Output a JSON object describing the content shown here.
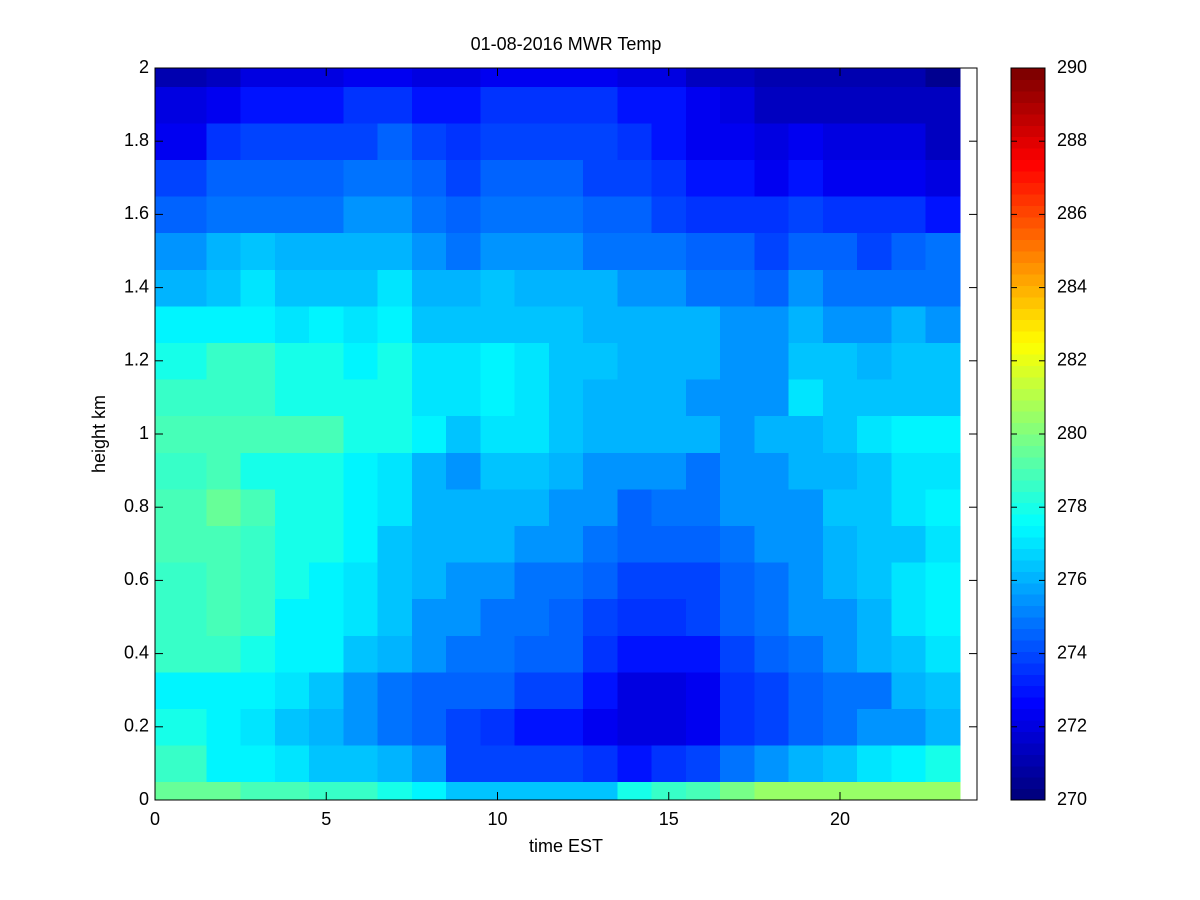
{
  "chart_data": {
    "type": "heatmap",
    "title": "01-08-2016 MWR Temp",
    "xlabel": "time EST",
    "ylabel": "height km",
    "xlim": [
      0,
      24
    ],
    "xticks": [
      0,
      5,
      10,
      15,
      20
    ],
    "ylim": [
      0,
      2
    ],
    "yticks": [
      0,
      0.2,
      0.4,
      0.6,
      0.8,
      1,
      1.2,
      1.4,
      1.6,
      1.8,
      2
    ],
    "colormap": "jet",
    "clim": [
      270,
      290
    ],
    "colorbar_ticks": [
      270,
      272,
      274,
      276,
      278,
      280,
      282,
      284,
      286,
      288,
      290
    ],
    "x_edges": [
      0,
      1.5,
      2.5,
      3.5,
      4.5,
      5.5,
      6.5,
      7.5,
      8.5,
      9.5,
      10.5,
      11.5,
      12.5,
      13.5,
      14.5,
      15.5,
      16.5,
      17.5,
      18.5,
      19.5,
      20.5,
      21.5,
      22.5,
      23.5
    ],
    "y_edges": [
      0,
      0.05,
      0.15,
      0.25,
      0.35,
      0.45,
      0.55,
      0.65,
      0.75,
      0.85,
      0.95,
      1.05,
      1.15,
      1.25,
      1.35,
      1.45,
      1.55,
      1.65,
      1.75,
      1.85,
      1.95,
      2
    ],
    "values": [
      [
        279.5,
        279.5,
        279,
        279,
        278.5,
        278.5,
        278,
        277.5,
        276.5,
        276.5,
        276.5,
        276.5,
        276.5,
        278,
        278.5,
        279,
        280,
        280.5,
        280.5,
        280.5,
        280.5,
        280.5,
        280.5
      ],
      [
        278.5,
        277.5,
        277.5,
        277,
        276.5,
        276.5,
        276,
        275.5,
        274,
        274,
        274,
        274,
        273.5,
        273,
        273.5,
        274,
        275,
        275.5,
        276,
        276.5,
        277,
        277.5,
        278
      ],
      [
        278,
        277.5,
        277,
        276.5,
        276,
        275.5,
        275,
        274.5,
        274,
        273.5,
        273,
        273,
        272.5,
        272,
        272,
        272.5,
        273.5,
        274,
        274.5,
        275,
        275.5,
        275.5,
        276
      ],
      [
        277.5,
        277.5,
        277.5,
        277,
        276.5,
        275.5,
        275,
        274.5,
        274.5,
        274.5,
        274,
        274,
        273,
        272,
        272,
        272.5,
        273.5,
        274,
        274.5,
        275,
        275,
        276,
        276.5
      ],
      [
        278.5,
        278.5,
        278,
        277.5,
        277.5,
        276.5,
        276,
        275.5,
        275,
        275,
        274.5,
        274.5,
        273.5,
        273,
        273,
        273,
        274,
        274.5,
        275,
        275.5,
        276,
        276.5,
        277
      ],
      [
        278.5,
        279,
        278.5,
        277.5,
        277.5,
        277,
        276.5,
        275.5,
        275.5,
        275,
        275,
        274.5,
        274,
        273.5,
        273.5,
        274,
        274.5,
        275,
        275.5,
        275.5,
        276,
        277,
        277.5
      ],
      [
        278.5,
        279,
        278.5,
        278,
        277.5,
        277,
        276.5,
        276,
        275.5,
        275.5,
        275,
        275,
        274.5,
        274,
        274,
        274,
        274.5,
        275,
        275.5,
        276,
        276.5,
        277,
        277.5
      ],
      [
        279,
        279,
        278.5,
        278,
        278,
        277.5,
        276.5,
        276,
        276,
        276,
        275.5,
        275.5,
        275,
        274.5,
        274.5,
        274.5,
        275,
        275.5,
        275.5,
        276,
        276.5,
        276.5,
        277
      ],
      [
        279,
        279.5,
        279,
        278,
        278,
        277.5,
        277,
        276,
        276,
        276,
        276,
        275.5,
        275.5,
        274.5,
        275,
        275,
        275.5,
        275.5,
        275.5,
        276.5,
        276.5,
        277,
        277.5
      ],
      [
        278.5,
        279,
        278,
        278,
        278,
        277.5,
        277,
        276,
        275.5,
        276.5,
        276.5,
        276,
        275.5,
        275.5,
        275.5,
        275,
        275.5,
        275.5,
        276,
        276,
        276.5,
        277,
        277
      ],
      [
        279,
        279,
        279,
        279,
        279,
        278,
        278,
        277.5,
        276.5,
        277,
        277,
        276.5,
        276,
        276,
        276,
        276,
        275.5,
        276,
        276,
        276.5,
        277,
        277.5,
        277.5
      ],
      [
        278.5,
        278.5,
        278.5,
        278,
        278,
        278,
        278,
        277,
        277,
        277.5,
        277,
        276.5,
        276,
        276,
        276,
        275.5,
        275.5,
        275.5,
        277,
        276.5,
        276.5,
        276.5,
        276.5
      ],
      [
        278,
        278.5,
        278.5,
        278,
        278,
        277.5,
        278,
        277,
        277,
        277.5,
        277,
        276.5,
        276.5,
        276,
        276,
        276,
        275.5,
        275.5,
        276.5,
        276.5,
        276,
        276.5,
        276.5
      ],
      [
        277.5,
        277.5,
        277.5,
        277,
        277.5,
        277,
        277.5,
        276.5,
        276.5,
        276.5,
        276.5,
        276.5,
        276,
        276,
        276,
        276,
        275.5,
        275.5,
        276,
        275.5,
        275.5,
        276,
        275.5
      ],
      [
        276,
        276.5,
        277,
        276.5,
        276.5,
        276.5,
        277,
        276,
        276,
        276.5,
        276,
        276,
        276,
        275.5,
        275.5,
        275,
        275,
        274.5,
        275.5,
        275,
        275,
        275,
        275
      ],
      [
        275.5,
        276,
        276.5,
        276,
        276,
        276,
        276,
        275.5,
        275,
        275.5,
        275.5,
        275.5,
        275,
        275,
        275,
        274.5,
        274.5,
        274,
        274.5,
        274.5,
        274,
        274.5,
        275
      ],
      [
        274.5,
        275,
        275,
        275,
        275,
        275.5,
        275.5,
        275,
        274.5,
        275,
        275,
        275,
        274.5,
        274.5,
        274,
        273.5,
        273.5,
        273.5,
        274,
        273.5,
        273.5,
        273.5,
        273
      ],
      [
        274,
        274.5,
        274.5,
        274.5,
        274.5,
        275,
        275,
        274.5,
        274,
        274.5,
        274.5,
        274.5,
        274,
        274,
        273.5,
        273,
        273,
        272.5,
        273,
        272.5,
        272.5,
        272.5,
        272
      ],
      [
        272.5,
        273.5,
        274,
        274,
        274,
        274,
        274.5,
        274,
        273.5,
        274,
        274,
        274,
        274,
        273.5,
        273,
        272.5,
        272.5,
        272,
        272.5,
        272,
        272,
        272,
        271.5
      ],
      [
        272,
        272.5,
        273,
        273,
        273,
        273.5,
        273.5,
        273,
        273,
        273.5,
        273.5,
        273.5,
        273.5,
        273,
        273,
        272.5,
        272,
        271.5,
        271.5,
        271.5,
        271.5,
        271.5,
        271.5
      ],
      [
        271,
        271.5,
        272,
        272,
        272,
        272.5,
        272.5,
        272,
        272,
        272.5,
        272.5,
        272.5,
        272.5,
        272,
        272,
        271.5,
        271.5,
        271,
        271,
        271,
        271,
        271,
        270.5
      ]
    ]
  }
}
